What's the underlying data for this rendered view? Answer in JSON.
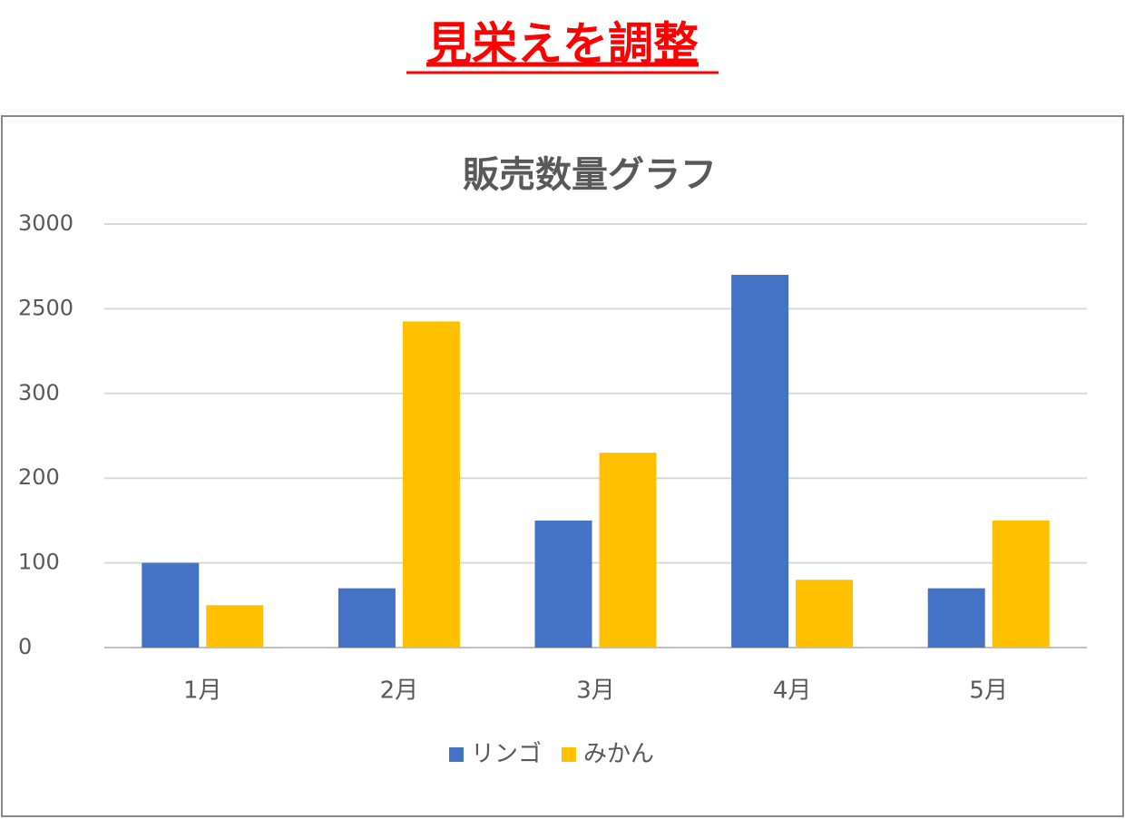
{
  "header": {
    "title": "見栄えを調整"
  },
  "chart_data": {
    "type": "bar",
    "title": "販売数量グラフ",
    "categories": [
      "1月",
      "2月",
      "3月",
      "4月",
      "5月"
    ],
    "series": [
      {
        "name": "リンゴ",
        "color": "#4472c4",
        "values": [
          100,
          70,
          150,
          2700,
          70
        ]
      },
      {
        "name": "みかん",
        "color": "#ffc000",
        "values": [
          50,
          2170,
          230,
          80,
          150
        ]
      }
    ],
    "ylim": [
      0,
      3000
    ],
    "yticks": [
      0,
      100,
      200,
      300,
      2500,
      3000
    ],
    "grid": true,
    "legend": "bottom"
  }
}
